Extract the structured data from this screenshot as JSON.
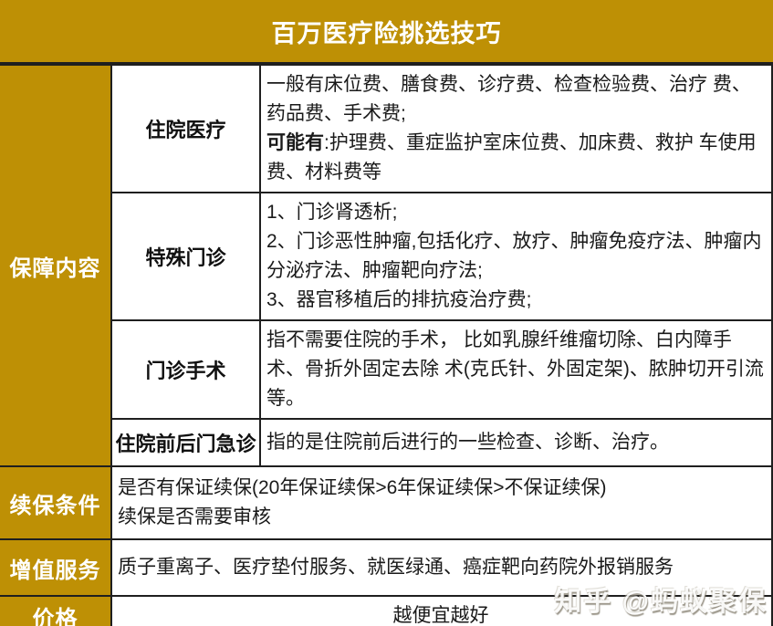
{
  "title": "百万医疗险挑选技巧",
  "colors": {
    "gold": "#BE9005",
    "border": "#1f1f1f",
    "header_text": "#ffffff",
    "body_text": "#1a1a1a"
  },
  "table": {
    "coverage": {
      "label": "保障内容",
      "rows": [
        {
          "label": "住院医疗",
          "line1": "一般有床位费、膳食费、诊疗费、检查检验费、治疗 费、药品费、手术费;",
          "bold": "可能有",
          "line2": ":护理费、重症监护室床位费、加床费、救护 车使用费、材料费等"
        },
        {
          "label": "特殊门诊",
          "items": [
            "1、门诊肾透析;",
            "2、门诊恶性肿瘤,包括化疗、放疗、肿瘤免疫疗法、肿瘤内分泌疗法、肿瘤靶向疗法;",
            "3、器官移植后的排抗疫治疗费;"
          ]
        },
        {
          "label": "门诊手术",
          "text": "指不需要住院的手术， 比如乳腺纤维瘤切除、白内障手术、骨折外固定去除 术(克氏针、外固定架)、脓肿切开引流等。"
        },
        {
          "label": "住院前后门急诊",
          "text": "指的是住院前后进行的一些检查、诊断、治疗。"
        }
      ]
    },
    "renewal": {
      "label": "续保条件",
      "lines": [
        "是否有保证续保(20年保证续保>6年保证续保>不保证续保)",
        "续保是否需要审核"
      ]
    },
    "services": {
      "label": "增值服务",
      "text": "质子重离子、医疗垫付服务、就医绿通、癌症靶向药院外报销服务"
    },
    "price": {
      "label": "价格",
      "text": "越便宜越好"
    }
  },
  "watermark": "知乎 @蚂蚁聚保"
}
